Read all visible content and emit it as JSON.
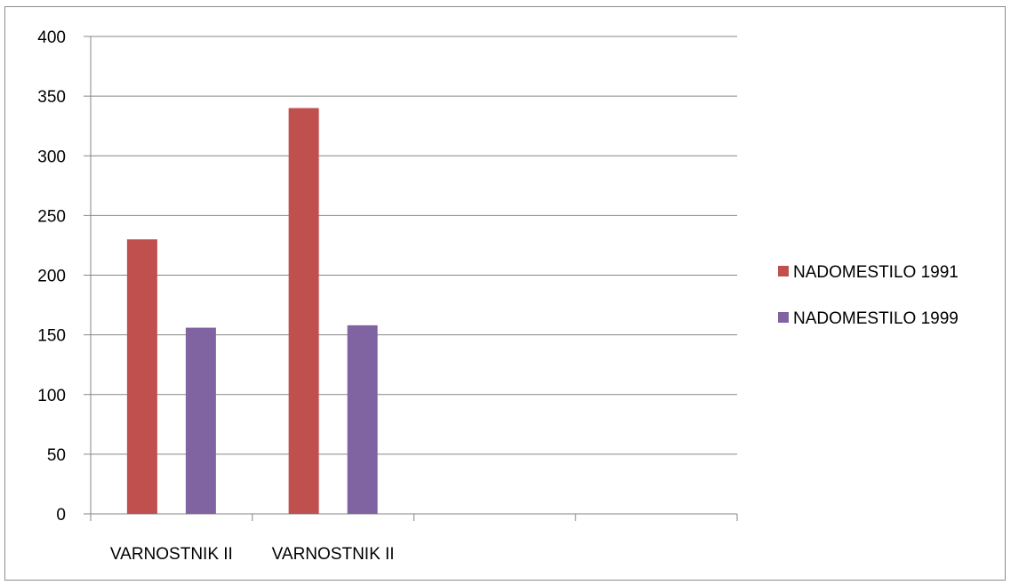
{
  "chart_data": {
    "type": "bar",
    "categories": [
      "VARNOSTNIK II",
      "VARNOSTNIK II",
      "",
      ""
    ],
    "series": [
      {
        "name": "NADOMESTILO 1991",
        "values": [
          230,
          340,
          null,
          null
        ],
        "color": "#c0504d"
      },
      {
        "name": "NADOMESTILO 1999",
        "values": [
          156,
          158,
          null,
          null
        ],
        "color": "#8064a2"
      }
    ],
    "ylim": [
      0,
      400
    ],
    "yticks": [
      "0",
      "50",
      "100",
      "150",
      "200",
      "250",
      "300",
      "350",
      "400"
    ],
    "grid": true,
    "legend": "right",
    "title": "",
    "xlabel": "",
    "ylabel": ""
  }
}
